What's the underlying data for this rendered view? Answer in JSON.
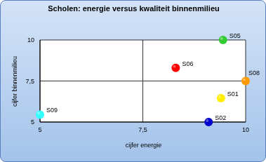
{
  "chart_data": {
    "type": "scatter",
    "title": "Scholen: energie versus kwaliteit binnenmilieu",
    "x_label": "cijfer energie",
    "y_label": "cijfer binnenmilieu",
    "xlim": [
      5,
      10
    ],
    "ylim": [
      5,
      10
    ],
    "xticks": [
      5,
      {
        "value": 7.5,
        "label": "7,5"
      },
      10
    ],
    "yticks": [
      5,
      {
        "value": 7.5,
        "label": "7,5"
      },
      10
    ],
    "grid": true,
    "series": [
      {
        "name": "S05",
        "color": "#33cc33",
        "x": [
          9.45
        ],
        "values": [
          10
        ]
      },
      {
        "name": "S06",
        "color": "#ff0000",
        "x": [
          8.3
        ],
        "values": [
          8.3
        ]
      },
      {
        "name": "S08",
        "color": "#ff9900",
        "x": [
          10
        ],
        "values": [
          7.5
        ]
      },
      {
        "name": "S01",
        "color": "#ffee00",
        "x": [
          9.4
        ],
        "values": [
          6.45
        ]
      },
      {
        "name": "S02",
        "color": "#0000cc",
        "x": [
          9.1
        ],
        "values": [
          5
        ]
      },
      {
        "name": "S09",
        "color": "#33ffff",
        "x": [
          5
        ],
        "values": [
          5.45
        ]
      }
    ]
  }
}
